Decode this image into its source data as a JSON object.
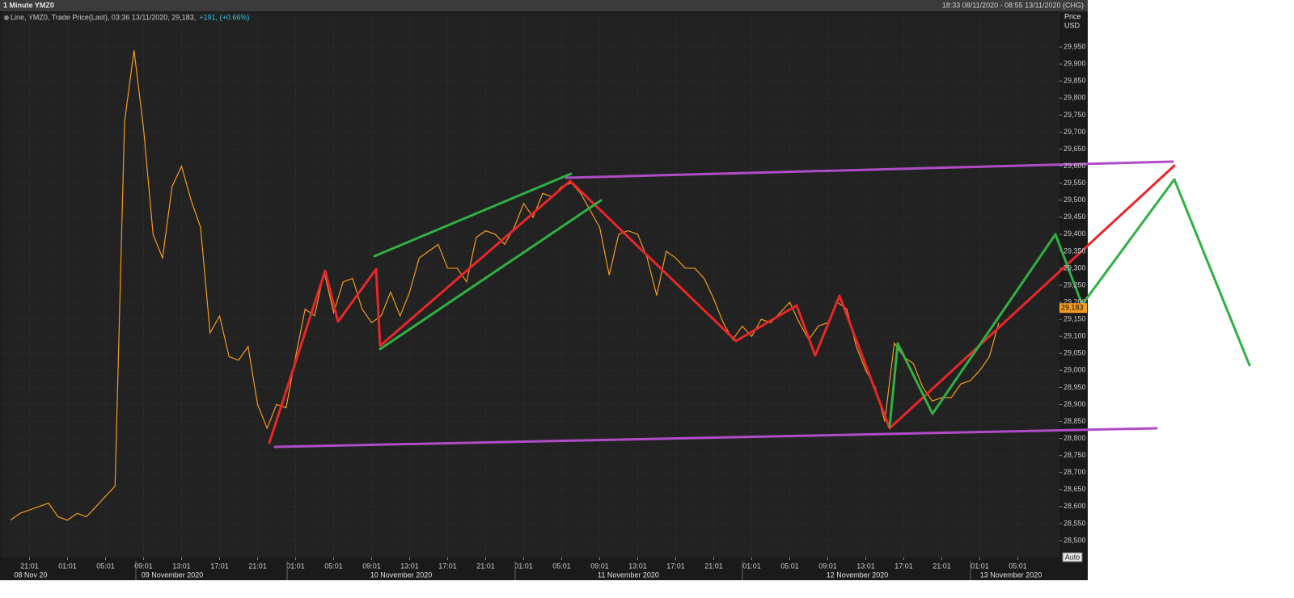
{
  "chart_data": {
    "type": "line",
    "title": "1 Minute YMZ0",
    "range_label": "18:33 08/11/2020 - 08:55 13/11/2020 (CHG)",
    "y_axis_label": "Price",
    "y_axis_unit": "USD",
    "legend_change": "+191, (+0.66%)",
    "auto_button": "Auto",
    "categories": [
      null,
      null,
      "21:01",
      null,
      null,
      null,
      "01:01",
      null,
      null,
      null,
      "05:01",
      null,
      null,
      null,
      "09:01",
      null,
      null,
      null,
      "13:01",
      null,
      null,
      null,
      "17:01",
      null,
      null,
      null,
      "21:01",
      null,
      null,
      null,
      "01:01",
      null,
      null,
      null,
      "05:01",
      null,
      null,
      null,
      "09:01",
      null,
      null,
      null,
      "13:01",
      null,
      null,
      null,
      "17:01",
      null,
      null,
      null,
      "21:01",
      null,
      null,
      null,
      "01:01",
      null,
      null,
      null,
      "05:01",
      null,
      null,
      null,
      "09:01",
      null,
      null,
      null,
      "13:01",
      null,
      null,
      null,
      "17:01",
      null,
      null,
      null,
      "21:01",
      null,
      null,
      null,
      "01:01",
      null,
      null,
      null,
      "05:01",
      null,
      null,
      null,
      "09:01",
      null,
      null,
      null,
      "13:01",
      null,
      null,
      null,
      "17:01",
      null,
      null,
      null,
      "21:01",
      null,
      null,
      null,
      "01:01",
      null,
      null,
      null,
      "05:01"
    ],
    "date_labels": [
      "08 Nov 20",
      "09 November 2020",
      "10 November 2020",
      "11 November 2020",
      "12 November 2020",
      "13 November 2020"
    ],
    "series": [
      {
        "name": "Line, YMZ0, Trade Price(Last), 03:36 13/11/2020, 29,183,",
        "color": "#f39a1e",
        "values": [
          28560,
          28580,
          28590,
          28600,
          28610,
          28570,
          28560,
          28580,
          28570,
          28600,
          28630,
          28660,
          29730,
          29940,
          29710,
          29400,
          29330,
          29540,
          29600,
          29500,
          29420,
          29110,
          29160,
          29040,
          29030,
          29070,
          28900,
          28830,
          28900,
          28890,
          29040,
          29180,
          29160,
          29290,
          29170,
          29260,
          29270,
          29180,
          29140,
          29160,
          29230,
          29160,
          29230,
          29330,
          29350,
          29370,
          29300,
          29300,
          29260,
          29390,
          29410,
          29400,
          29370,
          29420,
          29490,
          29450,
          29520,
          29510,
          29540,
          29550,
          29520,
          29470,
          29420,
          29280,
          29400,
          29410,
          29400,
          29330,
          29220,
          29350,
          29330,
          29300,
          29300,
          29270,
          29210,
          29140,
          29090,
          29130,
          29100,
          29150,
          29140,
          29170,
          29200,
          29140,
          29090,
          29130,
          29140,
          29200,
          29180,
          29070,
          29000,
          28950,
          28850,
          29080,
          29040,
          29020,
          28950,
          28910,
          28920,
          28920,
          28960,
          28970,
          29000,
          29040,
          29140,
          null,
          null
        ]
      }
    ],
    "last_value": {
      "value": 29183,
      "label": "29,183"
    },
    "ylim": [
      28450,
      30050
    ],
    "yticks": [
      {
        "value": 28500,
        "label": "28,500"
      },
      {
        "value": 28550,
        "label": "28,550"
      },
      {
        "value": 28600,
        "label": "28,600"
      },
      {
        "value": 28650,
        "label": "28,650"
      },
      {
        "value": 28700,
        "label": "28,700"
      },
      {
        "value": 28750,
        "label": "28,750"
      },
      {
        "value": 28800,
        "label": "28,800"
      },
      {
        "value": 28850,
        "label": "28,850"
      },
      {
        "value": 28900,
        "label": "28,900"
      },
      {
        "value": 28950,
        "label": "28,950"
      },
      {
        "value": 29000,
        "label": "29,000"
      },
      {
        "value": 29050,
        "label": "29,050"
      },
      {
        "value": 29100,
        "label": "29,100"
      },
      {
        "value": 29150,
        "label": "29,150"
      },
      {
        "value": 29200,
        "label": "29,200"
      },
      {
        "value": 29250,
        "label": "29,250"
      },
      {
        "value": 29300,
        "label": "29,300"
      },
      {
        "value": 29350,
        "label": "29,350"
      },
      {
        "value": 29400,
        "label": "29,400"
      },
      {
        "value": 29450,
        "label": "29,450"
      },
      {
        "value": 29500,
        "label": "29,500"
      },
      {
        "value": 29550,
        "label": "29,550"
      },
      {
        "value": 29600,
        "label": "29,600"
      },
      {
        "value": 29650,
        "label": "29,650"
      },
      {
        "value": 29700,
        "label": "29,700"
      },
      {
        "value": 29750,
        "label": "29,750"
      },
      {
        "value": 29800,
        "label": "29,800"
      },
      {
        "value": 29850,
        "label": "29,850"
      },
      {
        "value": 29900,
        "label": "29,900"
      },
      {
        "value": 29950,
        "label": "29,950"
      }
    ],
    "grid": true
  }
}
